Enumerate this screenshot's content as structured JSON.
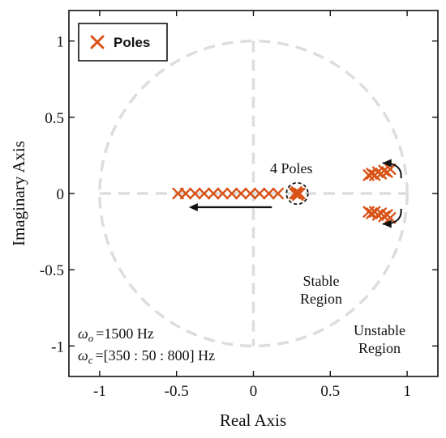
{
  "chart_data": {
    "type": "scatter",
    "xlabel": "Real Axis",
    "ylabel": "Imaginary Axis",
    "xlim": [
      -1.2,
      1.2
    ],
    "ylim": [
      -1.2,
      1.2
    ],
    "x_ticks": [
      -1,
      -0.5,
      0,
      0.5,
      1
    ],
    "x_tick_labels": [
      "-1",
      "-0.5",
      "0",
      "0.5",
      "1"
    ],
    "y_ticks": [
      1,
      0.5,
      0,
      -0.5,
      -1
    ],
    "y_tick_labels": [
      "1",
      "0.5",
      "0",
      "-0.5",
      "-1"
    ],
    "grid": false,
    "unit_circle": true,
    "legend": {
      "position": "top-left",
      "label": "Poles",
      "marker": "x"
    },
    "series": [
      {
        "name": "Poles",
        "color": "#d95319",
        "marker": "x",
        "points": [
          [
            -0.49,
            0
          ],
          [
            -0.44,
            0
          ],
          [
            -0.38,
            0
          ],
          [
            -0.32,
            0
          ],
          [
            -0.26,
            0
          ],
          [
            -0.2,
            0
          ],
          [
            -0.14,
            0
          ],
          [
            -0.08,
            0
          ],
          [
            -0.02,
            0
          ],
          [
            0.04,
            0
          ],
          [
            0.1,
            0
          ],
          [
            0.16,
            0
          ],
          [
            0.27,
            0
          ],
          [
            0.28,
            0
          ],
          [
            0.29,
            0
          ],
          [
            0.3,
            0
          ],
          [
            0.28,
            0.01
          ],
          [
            0.29,
            -0.01
          ],
          [
            0.75,
            0.12
          ],
          [
            0.77,
            0.13
          ],
          [
            0.79,
            0.12
          ],
          [
            0.81,
            0.14
          ],
          [
            0.83,
            0.13
          ],
          [
            0.85,
            0.15
          ],
          [
            0.87,
            0.14
          ],
          [
            0.89,
            0.16
          ],
          [
            0.75,
            -0.12
          ],
          [
            0.77,
            -0.13
          ],
          [
            0.79,
            -0.12
          ],
          [
            0.81,
            -0.14
          ],
          [
            0.83,
            -0.13
          ],
          [
            0.85,
            -0.15
          ],
          [
            0.87,
            -0.14
          ],
          [
            0.89,
            -0.16
          ]
        ]
      }
    ],
    "annotations": {
      "four_poles": "4  Poles",
      "stable_line1": "Stable",
      "stable_line2": "Region",
      "unstable_line1": "Unstable",
      "unstable_line2": "Region",
      "omega_o_symbol": "ω",
      "omega_o_sub": "o",
      "omega_o_value": "=1500  Hz",
      "omega_c_symbol": "ω",
      "omega_c_sub": "c",
      "omega_c_value": "=[350 : 50 : 800]  Hz"
    },
    "arrows": [
      {
        "from": [
          0.12,
          -0.09
        ],
        "to": [
          -0.42,
          -0.09
        ]
      },
      {
        "from": [
          0.96,
          0.1
        ],
        "to": [
          0.84,
          0.2
        ],
        "curved": true
      },
      {
        "from": [
          0.96,
          -0.1
        ],
        "to": [
          0.84,
          -0.2
        ],
        "curved": true
      }
    ],
    "circled_cluster": {
      "center": [
        0.285,
        0.0
      ],
      "radius": 0.07
    }
  }
}
